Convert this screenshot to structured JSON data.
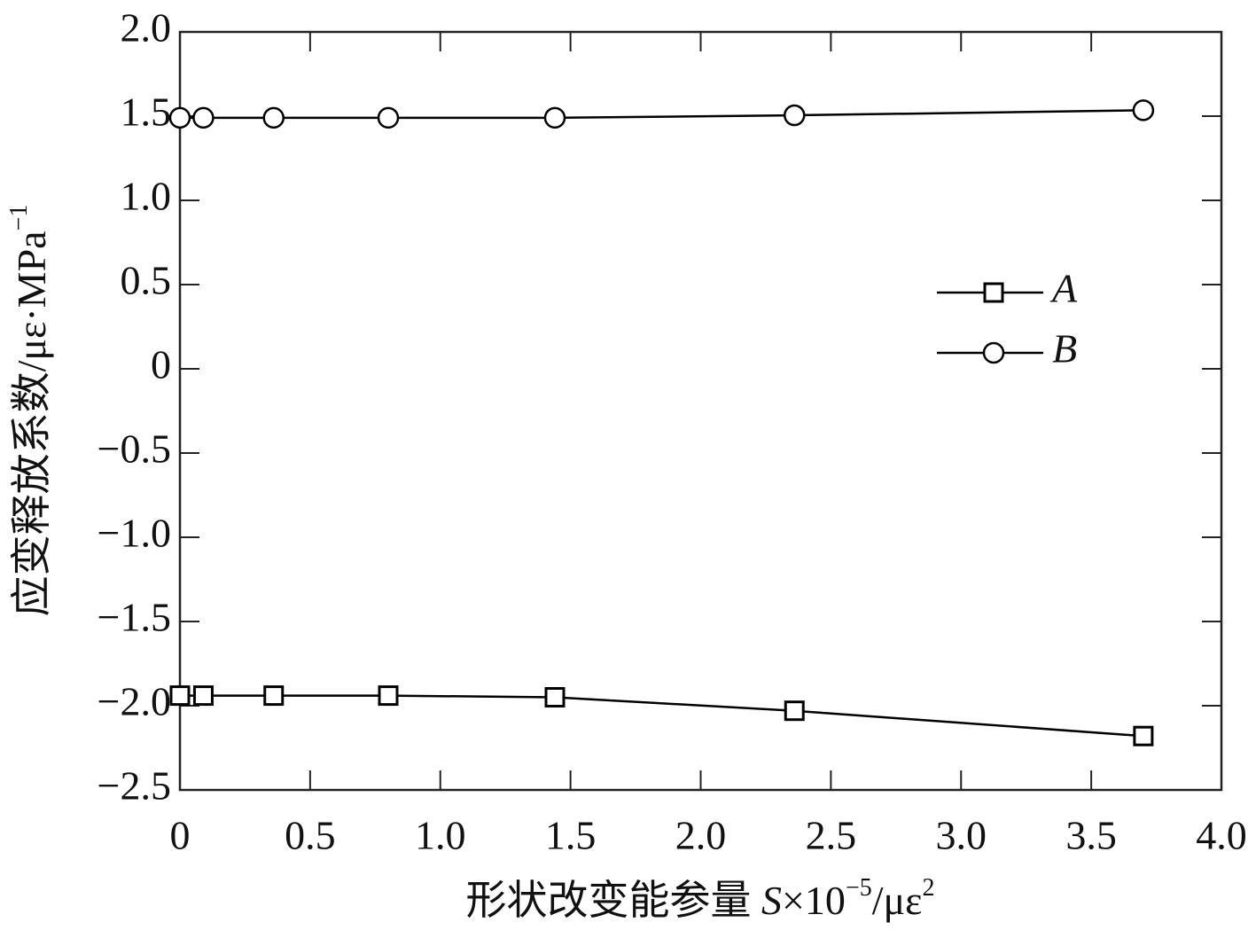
{
  "chart_data": {
    "type": "line",
    "x_label": [
      "形状改变能参量 ",
      "S",
      "×10",
      "−5",
      "/με",
      "2"
    ],
    "y_label": [
      "应变释放系数/με·MPa",
      "−1"
    ],
    "x": [
      0,
      0.09,
      0.36,
      0.8,
      1.44,
      2.36,
      3.7
    ],
    "series": [
      {
        "name": "A",
        "color": "#000000",
        "marker": "square",
        "values": [
          -1.94,
          -1.94,
          -1.94,
          -1.94,
          -1.95,
          -2.03,
          -2.18
        ]
      },
      {
        "name": "B",
        "color": "#000000",
        "marker": "circle",
        "values": [
          1.49,
          1.49,
          1.49,
          1.49,
          1.49,
          1.505,
          1.535
        ]
      }
    ],
    "xlim": [
      0,
      4.0
    ],
    "xticks": [
      0,
      {
        "value": 0.5,
        "label": "0.5"
      },
      {
        "value": 1,
        "label": "1.0"
      },
      {
        "value": 1.5,
        "label": "1.5"
      },
      {
        "value": 2,
        "label": "2.0"
      },
      {
        "value": 2.5,
        "label": "2.5"
      },
      {
        "value": 3,
        "label": "3.0"
      },
      {
        "value": 3.5,
        "label": "3.5"
      },
      {
        "value": 4,
        "label": "4.0"
      }
    ],
    "ylim": [
      -2.5,
      2.0
    ],
    "yticks": [
      {
        "value": -2.5,
        "label": "−2.5"
      },
      {
        "value": -2,
        "label": "−2.0"
      },
      {
        "value": -1.5,
        "label": "−1.5"
      },
      {
        "value": -1,
        "label": "−1.0"
      },
      {
        "value": -0.5,
        "label": "−0.5"
      },
      0,
      {
        "value": 0.5,
        "label": "0.5"
      },
      {
        "value": 1,
        "label": "1.0"
      },
      {
        "value": 1.5,
        "label": "1.5"
      },
      {
        "value": 2,
        "label": "2.0"
      }
    ],
    "grid": false,
    "legend": "right"
  }
}
